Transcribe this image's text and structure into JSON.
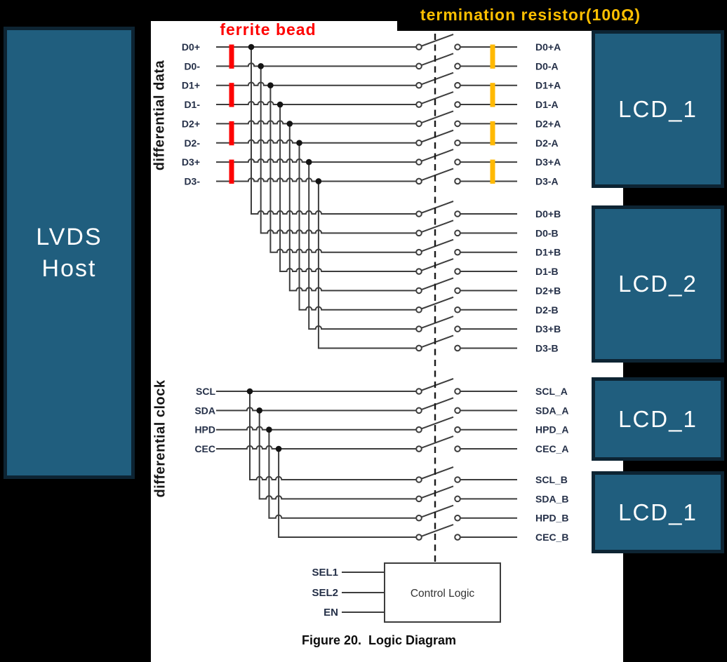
{
  "caption": "Figure 20.  Logic Diagram",
  "annotations": {
    "ferrite_bead": "ferrite bead",
    "termination_resistor": "termination resistor(100Ω)"
  },
  "host_box": {
    "line1": "LVDS",
    "line2": "Host"
  },
  "lcd_boxes": [
    {
      "label": "LCD_1"
    },
    {
      "label": "LCD_2"
    },
    {
      "label": "LCD_1"
    },
    {
      "label": "LCD_1"
    }
  ],
  "group_labels": {
    "data": "differential data",
    "clock": "differential clock"
  },
  "signals": {
    "data_in": [
      "D0+",
      "D0-",
      "D1+",
      "D1-",
      "D2+",
      "D2-",
      "D3+",
      "D3-"
    ],
    "data_out_a": [
      "D0+A",
      "D0-A",
      "D1+A",
      "D1-A",
      "D2+A",
      "D2-A",
      "D3+A",
      "D3-A"
    ],
    "data_out_b": [
      "D0+B",
      "D0-B",
      "D1+B",
      "D1-B",
      "D2+B",
      "D2-B",
      "D3+B",
      "D3-B"
    ],
    "clock_in": [
      "SCL",
      "SDA",
      "HPD",
      "CEC"
    ],
    "clock_out_a": [
      "SCL_A",
      "SDA_A",
      "HPD_A",
      "CEC_A"
    ],
    "clock_out_b": [
      "SCL_B",
      "SDA_B",
      "HPD_B",
      "CEC_B"
    ]
  },
  "control_logic": {
    "label": "Control Logic",
    "inputs": [
      "SEL1",
      "SEL2",
      "EN"
    ]
  },
  "colors": {
    "background": "#000000",
    "canvas": "#ffffff",
    "box_fill": "#205e7e",
    "box_border": "#0d2433",
    "box_text": "#ffffff",
    "wire": "#3d3d3d",
    "signal_label": "#253048",
    "group_label": "#161616",
    "ferrite_bead": "#fe0202",
    "termination_resistor": "#ffb902",
    "annotation_red": "#fe0202",
    "annotation_orange": "#ffc000",
    "caption_text": "#0d0d0d"
  }
}
